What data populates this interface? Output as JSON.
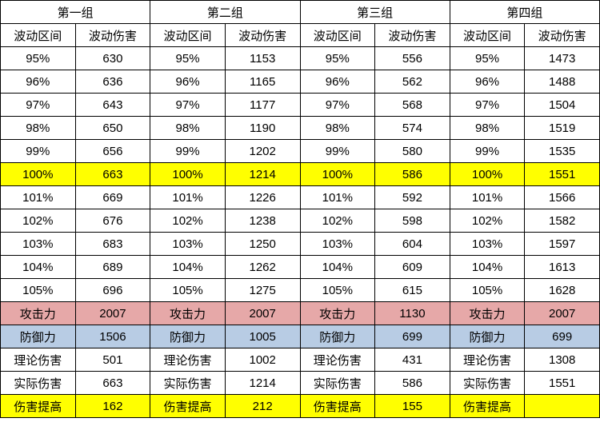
{
  "headers": {
    "group_labels": [
      "第一组",
      "第二组",
      "第三组",
      "第四组"
    ],
    "sub_labels_range": "波动区间",
    "sub_labels_dmg": "波动伤害"
  },
  "groups": [
    {
      "rows": [
        {
          "range": "95%",
          "dmg": 630
        },
        {
          "range": "96%",
          "dmg": 636
        },
        {
          "range": "97%",
          "dmg": 643
        },
        {
          "range": "98%",
          "dmg": 650
        },
        {
          "range": "99%",
          "dmg": 656
        },
        {
          "range": "100%",
          "dmg": 663
        },
        {
          "range": "101%",
          "dmg": 669
        },
        {
          "range": "102%",
          "dmg": 676
        },
        {
          "range": "103%",
          "dmg": 683
        },
        {
          "range": "104%",
          "dmg": 689
        },
        {
          "range": "105%",
          "dmg": 696
        }
      ],
      "stats": {
        "atk_label": "攻击力",
        "atk": 2007,
        "def_label": "防御力",
        "def": 1506,
        "theo_label": "理论伤害",
        "theo": 501,
        "actual_label": "实际伤害",
        "actual": 663,
        "boost_label": "伤害提高",
        "boost": 162
      }
    },
    {
      "rows": [
        {
          "range": "95%",
          "dmg": 1153
        },
        {
          "range": "96%",
          "dmg": 1165
        },
        {
          "range": "97%",
          "dmg": 1177
        },
        {
          "range": "98%",
          "dmg": 1190
        },
        {
          "range": "99%",
          "dmg": 1202
        },
        {
          "range": "100%",
          "dmg": 1214
        },
        {
          "range": "101%",
          "dmg": 1226
        },
        {
          "range": "102%",
          "dmg": 1238
        },
        {
          "range": "103%",
          "dmg": 1250
        },
        {
          "range": "104%",
          "dmg": 1262
        },
        {
          "range": "105%",
          "dmg": 1275
        }
      ],
      "stats": {
        "atk_label": "攻击力",
        "atk": 2007,
        "def_label": "防御力",
        "def": 1005,
        "theo_label": "理论伤害",
        "theo": 1002,
        "actual_label": "实际伤害",
        "actual": 1214,
        "boost_label": "伤害提高",
        "boost": 212
      }
    },
    {
      "rows": [
        {
          "range": "95%",
          "dmg": 556
        },
        {
          "range": "96%",
          "dmg": 562
        },
        {
          "range": "97%",
          "dmg": 568
        },
        {
          "range": "98%",
          "dmg": 574
        },
        {
          "range": "99%",
          "dmg": 580
        },
        {
          "range": "100%",
          "dmg": 586
        },
        {
          "range": "101%",
          "dmg": 592
        },
        {
          "range": "102%",
          "dmg": 598
        },
        {
          "range": "103%",
          "dmg": 604
        },
        {
          "range": "104%",
          "dmg": 609
        },
        {
          "range": "105%",
          "dmg": 615
        }
      ],
      "stats": {
        "atk_label": "攻击力",
        "atk": 1130,
        "def_label": "防御力",
        "def": 699,
        "theo_label": "理论伤害",
        "theo": 431,
        "actual_label": "实际伤害",
        "actual": 586,
        "boost_label": "伤害提高",
        "boost": 155
      }
    },
    {
      "rows": [
        {
          "range": "95%",
          "dmg": 1473
        },
        {
          "range": "96%",
          "dmg": 1488
        },
        {
          "range": "97%",
          "dmg": 1504
        },
        {
          "range": "98%",
          "dmg": 1519
        },
        {
          "range": "99%",
          "dmg": 1535
        },
        {
          "range": "100%",
          "dmg": 1551
        },
        {
          "range": "101%",
          "dmg": 1566
        },
        {
          "range": "102%",
          "dmg": 1582
        },
        {
          "range": "103%",
          "dmg": 1597
        },
        {
          "range": "104%",
          "dmg": 1613
        },
        {
          "range": "105%",
          "dmg": 1628
        }
      ],
      "stats": {
        "atk_label": "攻击力",
        "atk": 2007,
        "def_label": "防御力",
        "def": 699,
        "theo_label": "理论伤害",
        "theo": 1308,
        "actual_label": "实际伤害",
        "actual": 1551,
        "boost_label": "伤害提高",
        "boost": ""
      }
    }
  ],
  "highlight_100_index": 5,
  "colors": {
    "highlight_yellow": "#ffff00",
    "highlight_atk": "#e6a8a8",
    "highlight_def": "#b8cce4",
    "border": "#000000",
    "background": "#ffffff"
  }
}
